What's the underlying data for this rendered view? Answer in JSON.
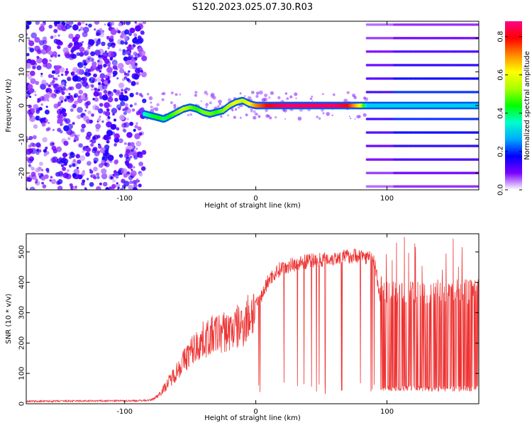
{
  "figure": {
    "title": "S120.2023.025.07.30.R03"
  },
  "chart_data": [
    {
      "type": "heatmap",
      "xlabel": "Height of straight line (km)",
      "ylabel": "Frequency (Hz)",
      "xlim": [
        -175,
        170
      ],
      "ylim": [
        -25,
        25
      ],
      "xticks": [
        -100,
        0,
        100
      ],
      "yticks": [
        -20,
        -10,
        0,
        10,
        20
      ],
      "colorbar": {
        "label": "Normalized spectral amplitude",
        "range": [
          0,
          0.88
        ],
        "ticks": [
          0.0,
          0.2,
          0.4,
          0.6,
          0.8
        ],
        "colormap": [
          "#ffffff",
          "#7b00ff",
          "#0000ff",
          "#00aaff",
          "#00ffcc",
          "#00ff00",
          "#aaff00",
          "#ffff00",
          "#ff8800",
          "#ff0000",
          "#ff0088"
        ]
      },
      "ridge": {
        "x": [
          -85,
          -80,
          -75,
          -70,
          -65,
          -60,
          -55,
          -50,
          -45,
          -40,
          -35,
          -30,
          -25,
          -20,
          -15,
          -10,
          -5,
          0,
          10,
          20,
          30,
          40,
          50,
          60,
          70,
          80,
          85,
          100,
          110,
          130,
          150,
          170
        ],
        "y": [
          -2.5,
          -3,
          -3.5,
          -4,
          -3,
          -2,
          -1,
          -0.5,
          -1,
          -2,
          -2.5,
          -2,
          -1.5,
          0,
          1,
          1.5,
          0.5,
          0,
          0,
          0,
          0,
          0,
          0,
          0,
          0,
          0,
          0,
          0,
          0,
          0,
          0,
          0
        ],
        "amplitude": [
          0.35,
          0.4,
          0.45,
          0.4,
          0.45,
          0.5,
          0.55,
          0.5,
          0.45,
          0.5,
          0.5,
          0.45,
          0.5,
          0.55,
          0.6,
          0.55,
          0.6,
          0.7,
          0.8,
          0.85,
          0.85,
          0.85,
          0.85,
          0.85,
          0.8,
          0.6,
          0.3,
          0.3,
          0.3,
          0.3,
          0.3,
          0.3
        ]
      },
      "harmonic_spacing_hz": 4,
      "harmonic_x_start": 85
    },
    {
      "type": "line",
      "xlabel": "Height of straight line (km)",
      "ylabel": "SNR (10 * v/v)",
      "xlim": [
        -175,
        170
      ],
      "ylim": [
        0,
        560
      ],
      "xticks": [
        -100,
        0,
        100
      ],
      "yticks": [
        0,
        100,
        200,
        300,
        400,
        500
      ],
      "color": "#ee3333",
      "envelope": {
        "x": [
          -175,
          -90,
          -80,
          -75,
          -70,
          -60,
          -50,
          -40,
          -30,
          -20,
          -10,
          0,
          5,
          10,
          20,
          40,
          60,
          80,
          90,
          95,
          100,
          120,
          140,
          160,
          170
        ],
        "y": [
          8,
          10,
          12,
          25,
          50,
          110,
          170,
          210,
          230,
          240,
          260,
          320,
          360,
          410,
          450,
          470,
          480,
          490,
          475,
          350,
          330,
          330,
          330,
          330,
          330
        ]
      },
      "peak_snr": 555
    }
  ]
}
